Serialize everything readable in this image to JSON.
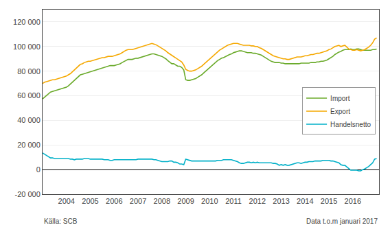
{
  "chart_data": {
    "type": "line",
    "annotations": [
      "Källa: SCB",
      "Data t.o.m januari 2017"
    ],
    "legend": "right",
    "grid": true,
    "xlim": [
      2003.0,
      2017.1
    ],
    "xticks": [
      2004,
      2005,
      2006,
      2007,
      2008,
      2009,
      2010,
      2011,
      2012,
      2013,
      2014,
      2015,
      2016
    ],
    "ylim": [
      -20000,
      130000
    ],
    "yticks": [
      {
        "value": -20000,
        "label": "-20 000"
      },
      0,
      {
        "value": 20000,
        "label": "20 000"
      },
      {
        "value": 40000,
        "label": "40 000"
      },
      {
        "value": 60000,
        "label": "60 000"
      },
      {
        "value": 80000,
        "label": "80 000"
      },
      {
        "value": 100000,
        "label": "100 000"
      },
      {
        "value": 120000,
        "label": "120 000"
      }
    ],
    "x": [
      2003.0,
      2003.083,
      2003.167,
      2003.25,
      2003.333,
      2003.417,
      2003.5,
      2003.583,
      2003.667,
      2003.75,
      2003.833,
      2003.917,
      2004.0,
      2004.083,
      2004.167,
      2004.25,
      2004.333,
      2004.417,
      2004.5,
      2004.583,
      2004.667,
      2004.75,
      2004.833,
      2004.917,
      2005.0,
      2005.083,
      2005.167,
      2005.25,
      2005.333,
      2005.417,
      2005.5,
      2005.583,
      2005.667,
      2005.75,
      2005.833,
      2005.917,
      2006.0,
      2006.083,
      2006.167,
      2006.25,
      2006.333,
      2006.417,
      2006.5,
      2006.583,
      2006.667,
      2006.75,
      2006.833,
      2006.917,
      2007.0,
      2007.083,
      2007.167,
      2007.25,
      2007.333,
      2007.417,
      2007.5,
      2007.583,
      2007.667,
      2007.75,
      2007.833,
      2007.917,
      2008.0,
      2008.083,
      2008.167,
      2008.25,
      2008.333,
      2008.417,
      2008.5,
      2008.583,
      2008.667,
      2008.75,
      2008.833,
      2008.917,
      2009.0,
      2009.083,
      2009.167,
      2009.25,
      2009.333,
      2009.417,
      2009.5,
      2009.583,
      2009.667,
      2009.75,
      2009.833,
      2009.917,
      2010.0,
      2010.083,
      2010.167,
      2010.25,
      2010.333,
      2010.417,
      2010.5,
      2010.583,
      2010.667,
      2010.75,
      2010.833,
      2010.917,
      2011.0,
      2011.083,
      2011.167,
      2011.25,
      2011.333,
      2011.417,
      2011.5,
      2011.583,
      2011.667,
      2011.75,
      2011.833,
      2011.917,
      2012.0,
      2012.083,
      2012.167,
      2012.25,
      2012.333,
      2012.417,
      2012.5,
      2012.583,
      2012.667,
      2012.75,
      2012.833,
      2012.917,
      2013.0,
      2013.083,
      2013.167,
      2013.25,
      2013.333,
      2013.417,
      2013.5,
      2013.583,
      2013.667,
      2013.75,
      2013.833,
      2013.917,
      2014.0,
      2014.083,
      2014.167,
      2014.25,
      2014.333,
      2014.417,
      2014.5,
      2014.583,
      2014.667,
      2014.75,
      2014.833,
      2014.917,
      2015.0,
      2015.083,
      2015.167,
      2015.25,
      2015.333,
      2015.417,
      2015.5,
      2015.583,
      2015.667,
      2015.75,
      2015.833,
      2015.917,
      2016.0,
      2016.083,
      2016.167,
      2016.25,
      2016.333,
      2016.417,
      2016.5,
      2016.583,
      2016.667,
      2016.75,
      2016.833,
      2016.917,
      2017.0
    ],
    "series": [
      {
        "name": "Import",
        "color": "#6aaa2a",
        "values": [
          57500,
          59000,
          60000,
          61500,
          63000,
          63500,
          64000,
          64500,
          65000,
          65500,
          66000,
          66500,
          67000,
          68000,
          69500,
          71000,
          73000,
          74500,
          76000,
          77000,
          77500,
          78000,
          78500,
          79000,
          79500,
          80000,
          80500,
          81000,
          81500,
          82000,
          82500,
          83000,
          83500,
          84000,
          84500,
          84500,
          84500,
          85000,
          85500,
          86000,
          87000,
          88000,
          89000,
          89500,
          89500,
          89500,
          90000,
          90500,
          90500,
          91000,
          91500,
          92000,
          92500,
          93000,
          93500,
          94000,
          94000,
          93500,
          93000,
          92500,
          92000,
          91000,
          90000,
          88500,
          87000,
          86000,
          86000,
          85000,
          84000,
          84000,
          83000,
          81000,
          73000,
          72500,
          72500,
          73000,
          73500,
          74000,
          75000,
          76000,
          77000,
          78500,
          80000,
          81500,
          83000,
          84500,
          86000,
          87500,
          88500,
          89500,
          90500,
          91000,
          92000,
          93000,
          93500,
          94000,
          95000,
          95500,
          96000,
          96500,
          96500,
          96000,
          95500,
          95000,
          95000,
          95000,
          94500,
          94500,
          94000,
          93500,
          93000,
          92000,
          91000,
          90000,
          89000,
          88000,
          87500,
          87000,
          87000,
          87000,
          86500,
          86500,
          86000,
          86000,
          86000,
          86000,
          86000,
          86000,
          86000,
          86000,
          86500,
          86500,
          86500,
          86500,
          86500,
          87000,
          87000,
          87000,
          87500,
          87500,
          88000,
          88000,
          88500,
          89000,
          90000,
          91000,
          92000,
          93500,
          94500,
          95500,
          96000,
          97000,
          97500,
          97500,
          97500,
          98000,
          97500,
          97500,
          98000,
          98000,
          97500,
          97000,
          97000,
          97000,
          97000,
          97000,
          97500,
          97500,
          98000
        ]
      },
      {
        "name": "Export",
        "color": "#f5a800",
        "values": [
          70000,
          71000,
          71500,
          72000,
          72500,
          73000,
          73000,
          73500,
          74000,
          74500,
          75000,
          75500,
          76000,
          77000,
          78000,
          79500,
          81000,
          83000,
          84500,
          85500,
          86000,
          87000,
          87500,
          88000,
          88000,
          88500,
          89000,
          89500,
          90000,
          90500,
          91000,
          91000,
          91500,
          92000,
          92000,
          92000,
          92500,
          93000,
          93500,
          94000,
          95000,
          96000,
          97000,
          97500,
          97500,
          97500,
          98000,
          98500,
          99000,
          99500,
          100000,
          100500,
          101000,
          101500,
          102000,
          102500,
          102000,
          101500,
          100500,
          99500,
          98500,
          97500,
          96500,
          95000,
          94000,
          93000,
          92000,
          91000,
          89500,
          88500,
          87500,
          85000,
          81500,
          80500,
          80000,
          80000,
          80500,
          81000,
          82000,
          83000,
          84000,
          85500,
          87000,
          88500,
          90000,
          91500,
          93000,
          94500,
          96000,
          97000,
          98000,
          99000,
          100000,
          101000,
          101500,
          102000,
          102500,
          102500,
          102500,
          102000,
          101500,
          101000,
          101000,
          101000,
          101000,
          100500,
          100500,
          100000,
          100000,
          99000,
          98500,
          97500,
          96500,
          95500,
          94500,
          93500,
          92500,
          92000,
          91500,
          91000,
          90500,
          90000,
          90000,
          89500,
          89500,
          90000,
          90500,
          91000,
          91500,
          91500,
          91500,
          92000,
          92500,
          92500,
          93000,
          93500,
          93500,
          94000,
          94500,
          94500,
          95000,
          95500,
          96000,
          96500,
          97500,
          98000,
          99000,
          100000,
          100500,
          101000,
          100000,
          100500,
          101000,
          99500,
          98000,
          97500,
          97000,
          97000,
          97500,
          97000,
          96500,
          97000,
          97500,
          98500,
          99500,
          101000,
          103000,
          106000,
          107000
        ]
      },
      {
        "name": "Handelsnetto",
        "color": "#00b0c8",
        "values": [
          13500,
          12500,
          11500,
          10500,
          9500,
          9500,
          9000,
          9000,
          9000,
          9000,
          9000,
          9000,
          9000,
          9000,
          8500,
          8500,
          8000,
          8500,
          8500,
          8500,
          8500,
          9000,
          9000,
          9000,
          8500,
          8500,
          8500,
          8500,
          8500,
          8500,
          8500,
          8000,
          8000,
          8000,
          7500,
          7500,
          8000,
          8000,
          8000,
          8000,
          8000,
          8000,
          8000,
          8000,
          8000,
          8000,
          8000,
          8000,
          8500,
          8500,
          8500,
          8500,
          8500,
          8500,
          8500,
          8500,
          8000,
          8000,
          7500,
          7000,
          6500,
          6500,
          6500,
          6500,
          7000,
          7000,
          6000,
          6000,
          5500,
          4500,
          4500,
          4000,
          8500,
          8000,
          7500,
          7000,
          7000,
          7000,
          7000,
          7000,
          7000,
          7000,
          7000,
          7000,
          7000,
          7000,
          7000,
          7000,
          7500,
          7500,
          7500,
          8000,
          8000,
          8000,
          8000,
          8000,
          7500,
          7000,
          6500,
          5500,
          5000,
          5000,
          5500,
          6000,
          6000,
          5500,
          6000,
          5500,
          6000,
          5500,
          5500,
          5500,
          5500,
          5500,
          5500,
          5500,
          5000,
          5000,
          4500,
          3500,
          4000,
          3500,
          4000,
          3500,
          3500,
          4000,
          4500,
          5000,
          5500,
          5500,
          5000,
          5500,
          6000,
          6000,
          6500,
          6500,
          6500,
          7000,
          7000,
          7000,
          7000,
          7500,
          7500,
          7500,
          7500,
          7000,
          7000,
          6500,
          6000,
          5500,
          4000,
          3500,
          3500,
          2000,
          500,
          -500,
          -500,
          -500,
          -500,
          -1000,
          -1000,
          0,
          500,
          1500,
          2500,
          4000,
          5500,
          8500,
          9000
        ]
      }
    ]
  }
}
